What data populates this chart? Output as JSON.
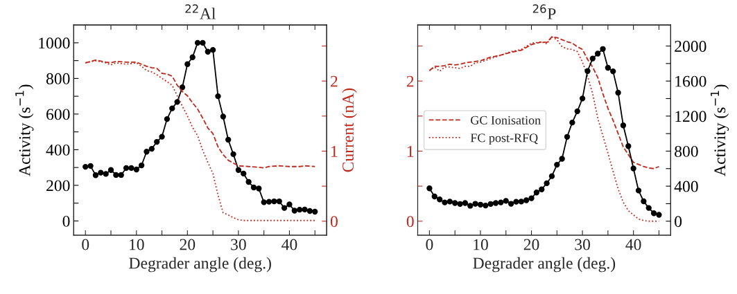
{
  "chart_data": [
    {
      "type": "line",
      "title": "$^{22}$Al",
      "xlabel": "Degrader angle (deg.)",
      "ylabel": "Activity (s$^{−1}$)",
      "y2label": "Current (nA)",
      "xlim": [
        -2.3,
        47.3
      ],
      "xticks": [
        0,
        {
          "value": 5,
          "label": null
        },
        10,
        {
          "value": 15,
          "label": null
        },
        20,
        {
          "value": 25,
          "label": null
        },
        30,
        {
          "value": 35,
          "label": null
        },
        40,
        {
          "value": 45,
          "label": null
        }
      ],
      "ylim": [
        -80,
        1100
      ],
      "yticks": [
        0,
        {
          "value": 100,
          "label": null
        },
        200,
        {
          "value": 300,
          "label": null
        },
        400,
        {
          "value": 500,
          "label": null
        },
        600,
        {
          "value": 700,
          "label": null
        },
        800,
        {
          "value": 900,
          "label": null
        },
        1000
      ],
      "y2lim": [
        -0.2,
        2.8
      ],
      "y2ticks": [
        0,
        {
          "value": 0.5,
          "label": null
        },
        1,
        {
          "value": 1.5,
          "label": null
        },
        2,
        {
          "value": 2.5,
          "label": null
        }
      ],
      "grid": false,
      "legend": false,
      "series": [
        {
          "color": "#000000",
          "marker": "circle",
          "line_style": "solid",
          "x": [
            0,
            1,
            2,
            3,
            4,
            5,
            6,
            7,
            8,
            9,
            10,
            11,
            12,
            13,
            14,
            15,
            16,
            17,
            18,
            19,
            20,
            21,
            22,
            23,
            24,
            25,
            26,
            27,
            28,
            29,
            30,
            31,
            32,
            33,
            34,
            35,
            36,
            37,
            38,
            39,
            40,
            41,
            42,
            43,
            44,
            45
          ],
          "values": [
            304,
            309,
            257,
            271,
            264,
            286,
            258,
            258,
            297,
            297,
            289,
            312,
            389,
            405,
            444,
            473,
            572,
            632,
            668,
            750,
            880,
            919,
            1000,
            1000,
            950,
            960,
            700,
            586,
            456,
            375,
            286,
            266,
            219,
            188,
            182,
            105,
            108,
            110,
            110,
            73,
            93,
            58,
            63,
            64,
            56,
            52
          ]
        },
        {
          "color": "#c0281c",
          "marker": "none",
          "line_style": "dashed",
          "axis": "y2",
          "x": [
            0,
            2,
            4,
            5,
            6,
            8,
            10,
            12,
            13,
            14,
            15,
            16,
            17,
            18,
            19,
            20,
            21,
            22,
            23,
            24,
            25,
            26,
            27,
            28,
            29,
            30,
            32,
            34,
            35,
            36,
            38,
            40,
            42,
            43,
            45
          ],
          "values": [
            2.26,
            2.3,
            2.27,
            2.26,
            2.28,
            2.27,
            2.27,
            2.21,
            2.19,
            2.18,
            2.11,
            2.1,
            2.07,
            1.94,
            1.85,
            1.79,
            1.69,
            1.6,
            1.47,
            1.33,
            1.25,
            1.06,
            0.95,
            0.87,
            0.83,
            0.79,
            0.78,
            0.77,
            0.76,
            0.78,
            0.79,
            0.78,
            0.78,
            0.79,
            0.78
          ]
        },
        {
          "color": "#c0281c",
          "marker": "none",
          "line_style": "dotted",
          "axis": "y2",
          "x": [
            0,
            2,
            4,
            5,
            6,
            8,
            10,
            11,
            12,
            13,
            14,
            15,
            16,
            17,
            18,
            19,
            20,
            21,
            22,
            23,
            24,
            25,
            26,
            27,
            28,
            29,
            30,
            31,
            33,
            45
          ],
          "values": [
            2.26,
            2.29,
            2.26,
            2.23,
            2.26,
            2.24,
            2.26,
            2.21,
            2.15,
            2.13,
            2.09,
            2.04,
            1.99,
            1.94,
            1.79,
            1.64,
            1.5,
            1.34,
            1.22,
            1.01,
            0.84,
            0.68,
            0.37,
            0.12,
            0.09,
            0.05,
            0.02,
            0.01,
            0.01,
            0.01
          ]
        }
      ]
    },
    {
      "type": "line",
      "title": "$^{26}$P",
      "xlabel": "Degrader angle (deg.)",
      "y2label": "Activity (s$^{−1}$)",
      "xlim": [
        -2.3,
        47.3
      ],
      "xticks": [
        0,
        {
          "value": 5,
          "label": null
        },
        10,
        {
          "value": 15,
          "label": null
        },
        20,
        {
          "value": 25,
          "label": null
        },
        30,
        {
          "value": 35,
          "label": null
        },
        40,
        {
          "value": 45,
          "label": null
        }
      ],
      "ylim": [
        -0.2,
        2.8
      ],
      "yticks": [
        0,
        {
          "value": 0.5,
          "label": null
        },
        1,
        {
          "value": 1.5,
          "label": null
        },
        2,
        {
          "value": 2.5,
          "label": null
        }
      ],
      "y2lim": [
        -160,
        2240
      ],
      "y2ticks": [
        0,
        {
          "value": 200,
          "label": null
        },
        400,
        {
          "value": 600,
          "label": null
        },
        800,
        {
          "value": 1000,
          "label": null
        },
        1200,
        {
          "value": 1400,
          "label": null
        },
        1600,
        {
          "value": 1800,
          "label": null
        },
        2000
      ],
      "grid": false,
      "legend": "center left",
      "series": [
        {
          "name": "GC Ionisation",
          "color": "#c0281c",
          "marker": "none",
          "line_style": "dashed",
          "x": [
            0,
            1,
            2,
            3,
            4,
            5,
            6,
            7,
            8,
            9,
            10,
            12,
            14,
            16,
            18,
            20,
            22,
            23,
            24,
            25,
            26,
            27,
            28,
            29,
            30,
            31,
            32,
            33,
            34,
            35,
            36,
            37,
            38,
            39,
            40,
            41,
            42,
            43,
            44,
            45
          ],
          "values": [
            2.15,
            2.21,
            2.21,
            2.22,
            2.24,
            2.23,
            2.24,
            2.26,
            2.27,
            2.28,
            2.29,
            2.34,
            2.37,
            2.41,
            2.44,
            2.52,
            2.56,
            2.55,
            2.63,
            2.62,
            2.59,
            2.56,
            2.54,
            2.49,
            2.45,
            2.31,
            2.2,
            2.05,
            1.82,
            1.61,
            1.44,
            1.25,
            1.06,
            0.95,
            0.84,
            0.81,
            0.78,
            0.76,
            0.75,
            0.78
          ]
        },
        {
          "name": "FC post-RFQ",
          "color": "#c0281c",
          "marker": "none",
          "line_style": "dotted",
          "x": [
            0,
            1,
            2,
            3,
            4,
            5,
            6,
            7,
            8,
            9,
            10,
            12,
            14,
            16,
            18,
            20,
            22,
            23,
            24,
            25,
            26,
            27,
            28,
            29,
            30,
            31,
            32,
            33,
            34,
            35,
            36,
            37,
            38,
            39,
            40,
            41,
            42,
            43,
            45
          ],
          "values": [
            2.15,
            2.2,
            2.14,
            2.2,
            2.2,
            2.19,
            2.18,
            2.21,
            2.21,
            2.26,
            2.27,
            2.32,
            2.37,
            2.42,
            2.45,
            2.54,
            2.56,
            2.53,
            2.63,
            2.59,
            2.49,
            2.46,
            2.45,
            2.42,
            2.27,
            2.07,
            1.82,
            1.47,
            1.22,
            0.97,
            0.71,
            0.46,
            0.27,
            0.15,
            0.09,
            0.03,
            0.01,
            0,
            0
          ]
        },
        {
          "color": "#000000",
          "marker": "circle",
          "line_style": "solid",
          "axis": "y2",
          "x": [
            0,
            1,
            2,
            3,
            4,
            5,
            6,
            7,
            8,
            9,
            10,
            11,
            12,
            13,
            14,
            15,
            16,
            17,
            18,
            19,
            20,
            21,
            22,
            23,
            24,
            25,
            26,
            27,
            28,
            29,
            30,
            31,
            32,
            33,
            34,
            35,
            36,
            37,
            38,
            39,
            40,
            41,
            42,
            43,
            44,
            45
          ],
          "values": [
            375,
            282,
            249,
            214,
            224,
            207,
            197,
            207,
            176,
            199,
            189,
            179,
            197,
            207,
            214,
            232,
            199,
            222,
            224,
            239,
            262,
            328,
            363,
            433,
            514,
            645,
            713,
            963,
            1126,
            1255,
            1401,
            1714,
            1857,
            1913,
            1966,
            1751,
            1711,
            1467,
            1094,
            857,
            602,
            350,
            227,
            151,
            91,
            73
          ]
        }
      ]
    }
  ]
}
